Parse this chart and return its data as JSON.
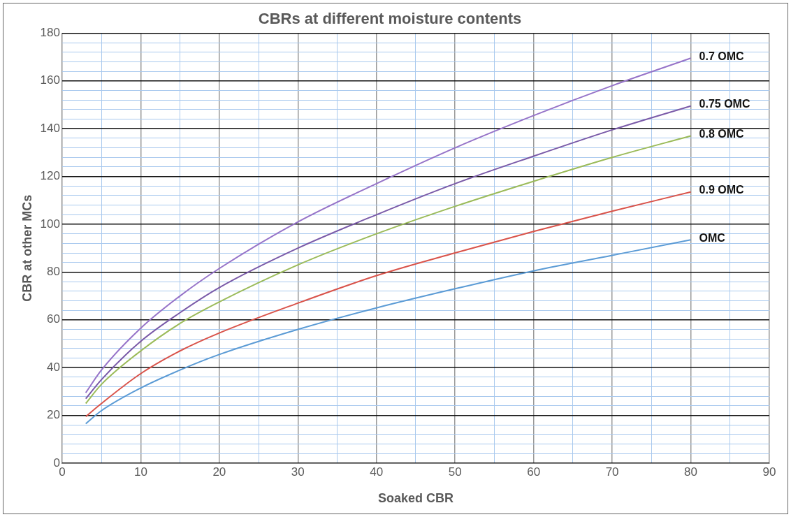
{
  "chart_data": {
    "type": "line",
    "title": "CBRs at different moisture contents",
    "xlabel": "Soaked CBR",
    "ylabel": "CBR at other MCs",
    "x": [
      3,
      5,
      10,
      15,
      20,
      30,
      40,
      50,
      60,
      70,
      80
    ],
    "series": [
      {
        "name": "0.7 OMC",
        "color": "#9673c8",
        "values": [
          29.5,
          39,
          56.5,
          70,
          81.5,
          101,
          117,
          132,
          145.5,
          158,
          169.5
        ]
      },
      {
        "name": "0.75 OMC",
        "color": "#7a5aa8",
        "values": [
          27,
          35,
          51,
          63,
          73.5,
          90,
          104,
          117,
          128.5,
          139.5,
          149.5
        ]
      },
      {
        "name": "0.8 OMC",
        "color": "#9bbb59",
        "values": [
          25,
          33,
          47,
          58.5,
          67.5,
          83,
          96,
          107.5,
          118,
          128,
          137
        ]
      },
      {
        "name": "0.9 OMC",
        "color": "#d9534a",
        "values": [
          19.5,
          25,
          37.5,
          47,
          54.5,
          67,
          78.5,
          88,
          97,
          105.5,
          113.5
        ]
      },
      {
        "name": "OMC",
        "color": "#5b9bd5",
        "values": [
          16.5,
          22,
          31.5,
          39,
          45.5,
          56,
          65,
          73,
          80.5,
          87,
          93.5
        ]
      }
    ],
    "xlim": [
      0,
      90
    ],
    "ylim": [
      0,
      180
    ],
    "xticks": [
      0,
      {
        "value": 5,
        "label": null
      },
      10,
      {
        "value": 15,
        "label": null
      },
      20,
      {
        "value": 25,
        "label": null
      },
      30,
      {
        "value": 35,
        "label": null
      },
      40,
      {
        "value": 45,
        "label": null
      },
      50,
      {
        "value": 55,
        "label": null
      },
      60,
      {
        "value": 65,
        "label": null
      },
      70,
      {
        "value": 75,
        "label": null
      },
      80,
      {
        "value": 85,
        "label": null
      },
      90
    ],
    "yticks": [
      0,
      {
        "value": 4,
        "label": null
      },
      {
        "value": 8,
        "label": null
      },
      {
        "value": 12,
        "label": null
      },
      {
        "value": 16,
        "label": null
      },
      20,
      {
        "value": 24,
        "label": null
      },
      {
        "value": 28,
        "label": null
      },
      {
        "value": 32,
        "label": null
      },
      {
        "value": 36,
        "label": null
      },
      40,
      {
        "value": 44,
        "label": null
      },
      {
        "value": 48,
        "label": null
      },
      {
        "value": 52,
        "label": null
      },
      {
        "value": 56,
        "label": null
      },
      60,
      {
        "value": 64,
        "label": null
      },
      {
        "value": 68,
        "label": null
      },
      {
        "value": 72,
        "label": null
      },
      {
        "value": 76,
        "label": null
      },
      80,
      {
        "value": 84,
        "label": null
      },
      {
        "value": 88,
        "label": null
      },
      {
        "value": 92,
        "label": null
      },
      {
        "value": 96,
        "label": null
      },
      100,
      {
        "value": 104,
        "label": null
      },
      {
        "value": 108,
        "label": null
      },
      {
        "value": 112,
        "label": null
      },
      {
        "value": 116,
        "label": null
      },
      120,
      {
        "value": 124,
        "label": null
      },
      {
        "value": 128,
        "label": null
      },
      {
        "value": 132,
        "label": null
      },
      {
        "value": 136,
        "label": null
      },
      140,
      {
        "value": 144,
        "label": null
      },
      {
        "value": 148,
        "label": null
      },
      {
        "value": 152,
        "label": null
      },
      {
        "value": 156,
        "label": null
      },
      160,
      {
        "value": 164,
        "label": null
      },
      {
        "value": 168,
        "label": null
      },
      {
        "value": 172,
        "label": null
      },
      {
        "value": 176,
        "label": null
      },
      180
    ],
    "grid": true,
    "legend": false,
    "marker": "none",
    "line_style": "solid"
  }
}
